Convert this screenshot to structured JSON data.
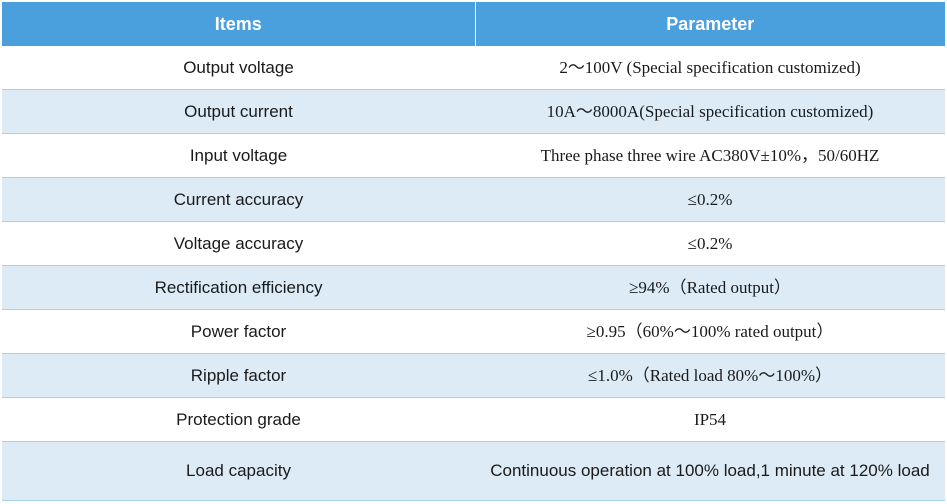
{
  "table": {
    "headers": [
      "Items",
      "Parameter"
    ],
    "rows": [
      {
        "item": "Output voltage",
        "parameter": "2～100V (Special specification customized)"
      },
      {
        "item": "Output current",
        "parameter": "10A～8000A(Special specification customized)"
      },
      {
        "item": "Input voltage",
        "parameter": "Three phase three wire  AC380V±10%，50/60HZ"
      },
      {
        "item": "Current accuracy",
        "parameter": "≤0.2%"
      },
      {
        "item": "Voltage accuracy",
        "parameter": "≤0.2%"
      },
      {
        "item": "Rectification efficiency",
        "parameter": "≥94%（Rated output）"
      },
      {
        "item": "Power factor",
        "parameter": "≥0.95（60%～100% rated output）"
      },
      {
        "item": "Ripple factor",
        "parameter": "≤1.0%（Rated load 80%～100%）"
      },
      {
        "item": "Protection grade",
        "parameter": "IP54"
      },
      {
        "item": "Load capacity",
        "parameter": "Continuous operation at 100% load,1 minute at 120% load"
      }
    ]
  }
}
